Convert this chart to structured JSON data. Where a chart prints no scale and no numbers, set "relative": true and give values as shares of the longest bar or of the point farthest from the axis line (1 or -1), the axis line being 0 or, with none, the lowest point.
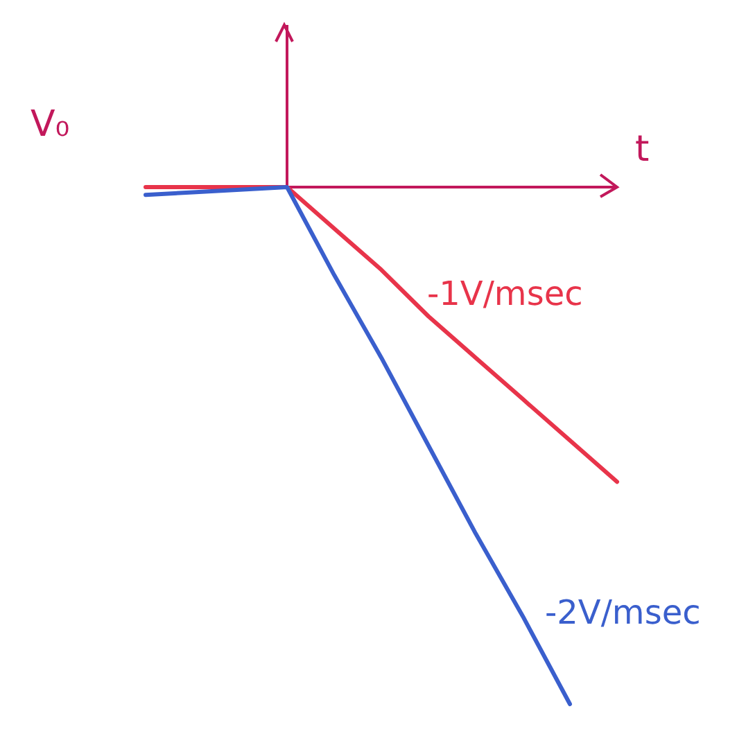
{
  "chart_data": {
    "type": "line",
    "relative": true,
    "ylabel": "V₀",
    "xlabel": "t",
    "categories": [
      null,
      null,
      null,
      null,
      null,
      null,
      null,
      null,
      null,
      null,
      null
    ],
    "series": [
      {
        "color": "#e8344a",
        "values": [
          0,
          0,
          0,
          0,
          -0.08,
          -0.16,
          -0.25,
          -0.33,
          -0.41,
          -0.49,
          -0.57
        ]
      },
      {
        "color": "#3a5fcd",
        "values": [
          -0.015,
          -0.01,
          -0.005,
          0,
          -0.17,
          -0.33,
          -0.5,
          -0.67,
          -0.83,
          -1,
          null
        ]
      }
    ],
    "annotations": [
      "-1V/msec",
      "-2V/msec"
    ],
    "line_style": "solid"
  }
}
